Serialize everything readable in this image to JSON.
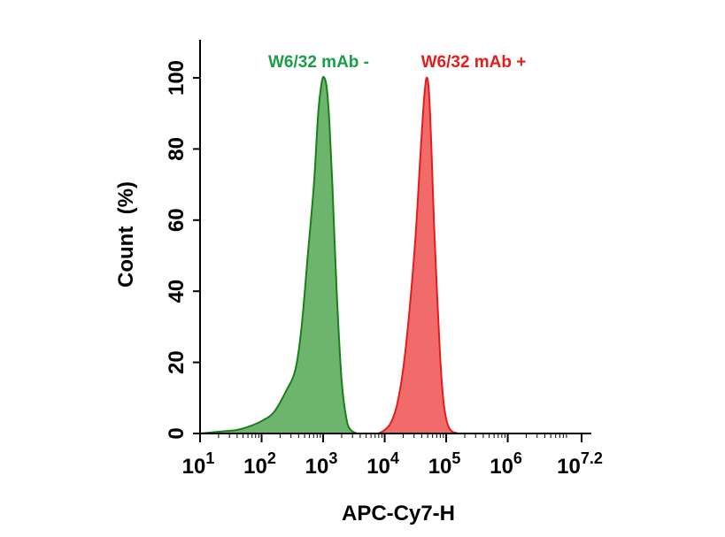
{
  "chart_data": {
    "type": "area",
    "xscale": "log10",
    "xlim": [
      1,
      7.2
    ],
    "ylim": [
      0,
      110
    ],
    "xlabel": "APC-Cy7-H",
    "ylabel": "Count  (%)",
    "x_ticks": [
      {
        "value": 1,
        "base": "10",
        "exp": "1"
      },
      {
        "value": 2,
        "base": "10",
        "exp": "2"
      },
      {
        "value": 3,
        "base": "10",
        "exp": "3"
      },
      {
        "value": 4,
        "base": "10",
        "exp": "4"
      },
      {
        "value": 5,
        "base": "10",
        "exp": "5"
      },
      {
        "value": 6,
        "base": "10",
        "exp": "6"
      },
      {
        "value": 7.2,
        "base": "10",
        "exp": "7.2"
      }
    ],
    "y_ticks": [
      0,
      20,
      40,
      60,
      80,
      100
    ],
    "series": [
      {
        "name": "W6/32 mAb -",
        "stroke": "#1a7f1a",
        "fill": "#6db56d",
        "label_color": "#1a9e4a",
        "x": [
          1.0,
          1.3,
          1.6,
          1.8,
          2.0,
          2.2,
          2.4,
          2.55,
          2.65,
          2.75,
          2.85,
          2.92,
          2.98,
          3.02,
          3.06,
          3.1,
          3.15,
          3.22,
          3.3,
          3.38,
          3.45,
          3.55
        ],
        "y": [
          0,
          0.5,
          1,
          2,
          3.5,
          6,
          12,
          18,
          30,
          50,
          70,
          90,
          99,
          100,
          97,
          88,
          70,
          40,
          15,
          4,
          1,
          0
        ]
      },
      {
        "name": "W6/32 mAb +",
        "stroke": "#e51c1c",
        "fill": "#f26b6b",
        "label_color": "#e51c1c",
        "x": [
          3.9,
          4.0,
          4.1,
          4.2,
          4.3,
          4.4,
          4.5,
          4.58,
          4.64,
          4.68,
          4.72,
          4.76,
          4.8,
          4.85,
          4.9,
          4.95,
          5.0,
          5.05,
          5.1,
          5.2
        ],
        "y": [
          0,
          1,
          3,
          8,
          18,
          34,
          55,
          78,
          94,
          100,
          96,
          80,
          60,
          40,
          22,
          10,
          4,
          1.5,
          0.5,
          0
        ]
      }
    ]
  }
}
